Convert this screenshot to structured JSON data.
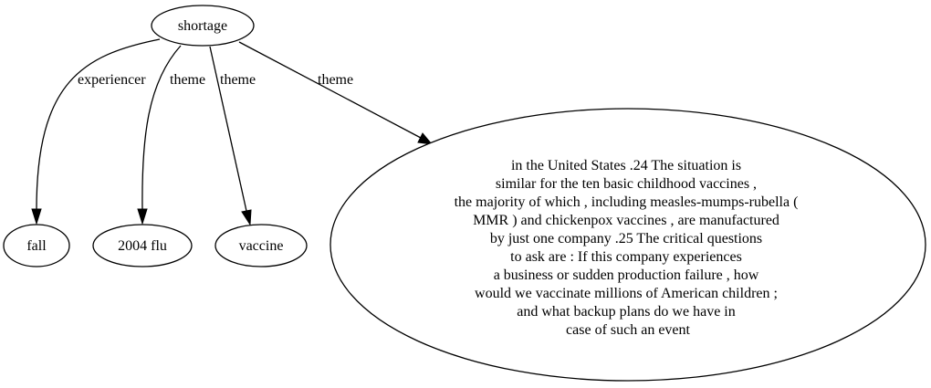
{
  "graph": {
    "nodes": {
      "shortage": {
        "label": "shortage"
      },
      "fall": {
        "label": "fall"
      },
      "flu": {
        "label": "2004 flu"
      },
      "vaccine": {
        "label": "vaccine"
      },
      "passage": {
        "lines": [
          "in the United States .24 The situation is",
          "similar for the ten basic childhood vaccines ,",
          "the majority of which , including measles-mumps-rubella (",
          "MMR ) and chickenpox vaccines , are manufactured",
          "by just one company .25 The critical questions",
          "to ask are : If this company experiences",
          "a business or sudden production failure , how",
          "would we vaccinate millions of American children ;",
          "and what backup plans do we have in",
          "case of such an event"
        ]
      }
    },
    "edges": {
      "to_fall": {
        "label": "experiencer"
      },
      "to_flu": {
        "label": "theme"
      },
      "to_vaccine": {
        "label": "theme"
      },
      "to_passage": {
        "label": "theme"
      }
    }
  }
}
